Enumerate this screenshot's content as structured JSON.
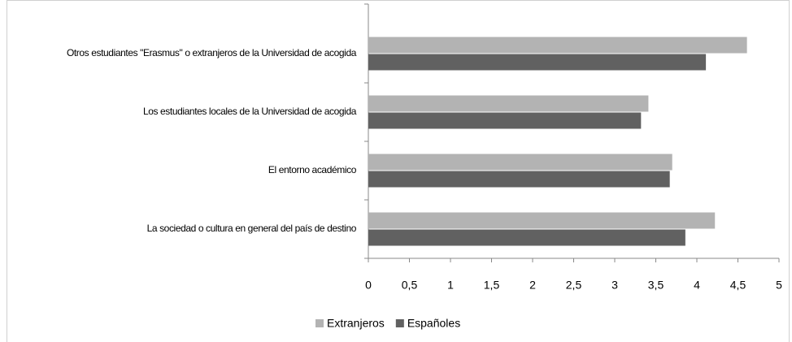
{
  "chart_data": {
    "type": "bar",
    "orientation": "horizontal",
    "categories": [
      "Otros estudiantes \"Erasmus\" o extranjeros de la Universidad de acogida",
      "Los estudiantes locales de la Universidad de acogida",
      "El entorno académico",
      "La sociedad o cultura en general del país de destino"
    ],
    "series": [
      {
        "name": "Extranjeros",
        "color": "#b3b3b3",
        "values": [
          4.61,
          3.41,
          3.7,
          4.22
        ]
      },
      {
        "name": "Españoles",
        "color": "#616161",
        "values": [
          4.11,
          3.32,
          3.67,
          3.86
        ]
      }
    ],
    "xlim": [
      0,
      5
    ],
    "xticks": [
      0,
      {
        "value": 0.5,
        "label": "0,5"
      },
      1,
      {
        "value": 1.5,
        "label": "1,5"
      },
      2,
      {
        "value": 2.5,
        "label": "2,5"
      },
      3,
      {
        "value": 3.5,
        "label": "3,5"
      },
      4,
      {
        "value": 4.5,
        "label": "4,5"
      },
      5
    ],
    "grid": false,
    "legend": "bottom"
  }
}
